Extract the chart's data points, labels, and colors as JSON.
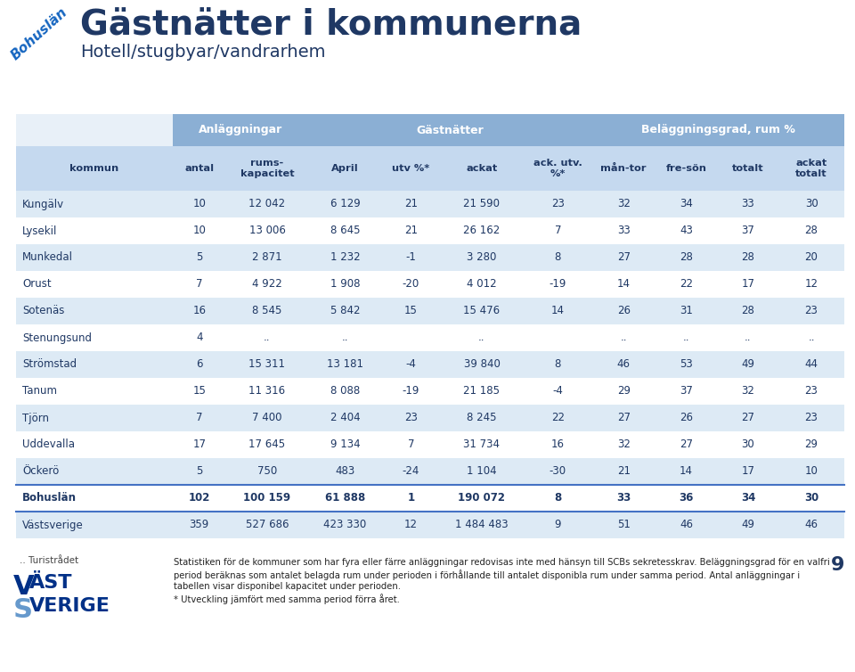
{
  "title": "Gästnätter i kommunerna",
  "subtitle": "Hotell/stugbyar/vandrarhem",
  "bohuslän_label": "Bohuslän",
  "header_groups": [
    {
      "label": "Anläggningar"
    },
    {
      "label": "Gästnätter"
    },
    {
      "label": "Beläggningsgrad, rum %"
    }
  ],
  "col_headers": [
    "kommun",
    "antal",
    "rums-\nkapacitet",
    "April",
    "utv %*",
    "ackat",
    "ack. utv.\n%*",
    "mån-tor",
    "fre-sön",
    "totalt",
    "ackat\ntotalt"
  ],
  "rows": [
    [
      "Kungälv",
      "10",
      "12 042",
      "6 129",
      "21",
      "21 590",
      "23",
      "32",
      "34",
      "33",
      "30"
    ],
    [
      "Lysekil",
      "10",
      "13 006",
      "8 645",
      "21",
      "26 162",
      "7",
      "33",
      "43",
      "37",
      "28"
    ],
    [
      "Munkedal",
      "5",
      "2 871",
      "1 232",
      "-1",
      "3 280",
      "8",
      "27",
      "28",
      "28",
      "20"
    ],
    [
      "Orust",
      "7",
      "4 922",
      "1 908",
      "-20",
      "4 012",
      "-19",
      "14",
      "22",
      "17",
      "12"
    ],
    [
      "Sotenäs",
      "16",
      "8 545",
      "5 842",
      "15",
      "15 476",
      "14",
      "26",
      "31",
      "28",
      "23"
    ],
    [
      "Stenungsund",
      "4",
      "..",
      "..",
      "",
      "..",
      "",
      "..",
      "..",
      "..",
      ".."
    ],
    [
      "Strömstad",
      "6",
      "15 311",
      "13 181",
      "-4",
      "39 840",
      "8",
      "46",
      "53",
      "49",
      "44"
    ],
    [
      "Tanum",
      "15",
      "11 316",
      "8 088",
      "-19",
      "21 185",
      "-4",
      "29",
      "37",
      "32",
      "23"
    ],
    [
      "Tjörn",
      "7",
      "7 400",
      "2 404",
      "23",
      "8 245",
      "22",
      "27",
      "26",
      "27",
      "23"
    ],
    [
      "Uddevalla",
      "17",
      "17 645",
      "9 134",
      "7",
      "31 734",
      "16",
      "32",
      "27",
      "30",
      "29"
    ],
    [
      "Öckerö",
      "5",
      "750",
      "483",
      "-24",
      "1 104",
      "-30",
      "21",
      "14",
      "17",
      "10"
    ]
  ],
  "bold_row": [
    "Bohuslän",
    "102",
    "100 159",
    "61 888",
    "1",
    "190 072",
    "8",
    "33",
    "36",
    "34",
    "30"
  ],
  "last_row": [
    "Västsverige",
    "359",
    "527 686",
    "423 330",
    "12",
    "1 484 483",
    "9",
    "51",
    "46",
    "49",
    "46"
  ],
  "footer_lines": [
    "Statistiken för de kommuner som har fyra eller färre anläggningar redovisas inte med hänsyn till SCBs sekretesskrav. Beläggningsgrad för en valfri",
    "period beräknas som antalet belagda rum under perioden i förhållande till antalet disponibla rum under samma period. Antal anläggningar i",
    "tabellen visar disponibel kapacitet under perioden.",
    "* Utveckling jämfört med samma period förra året."
  ],
  "page_number": "9",
  "header_bg": "#8BAFD4",
  "subheader_bg": "#C5D9EF",
  "row_bg_light": "#DDEAF5",
  "row_bg_white": "#FFFFFF",
  "title_color": "#1F3864",
  "header_text_color": "#FFFFFF",
  "subheader_text_color": "#1F3864",
  "body_text_color": "#1F3864",
  "separator_color": "#4472C4",
  "col_widths_rel": [
    1.55,
    0.52,
    0.82,
    0.72,
    0.58,
    0.82,
    0.68,
    0.62,
    0.62,
    0.6,
    0.65
  ]
}
